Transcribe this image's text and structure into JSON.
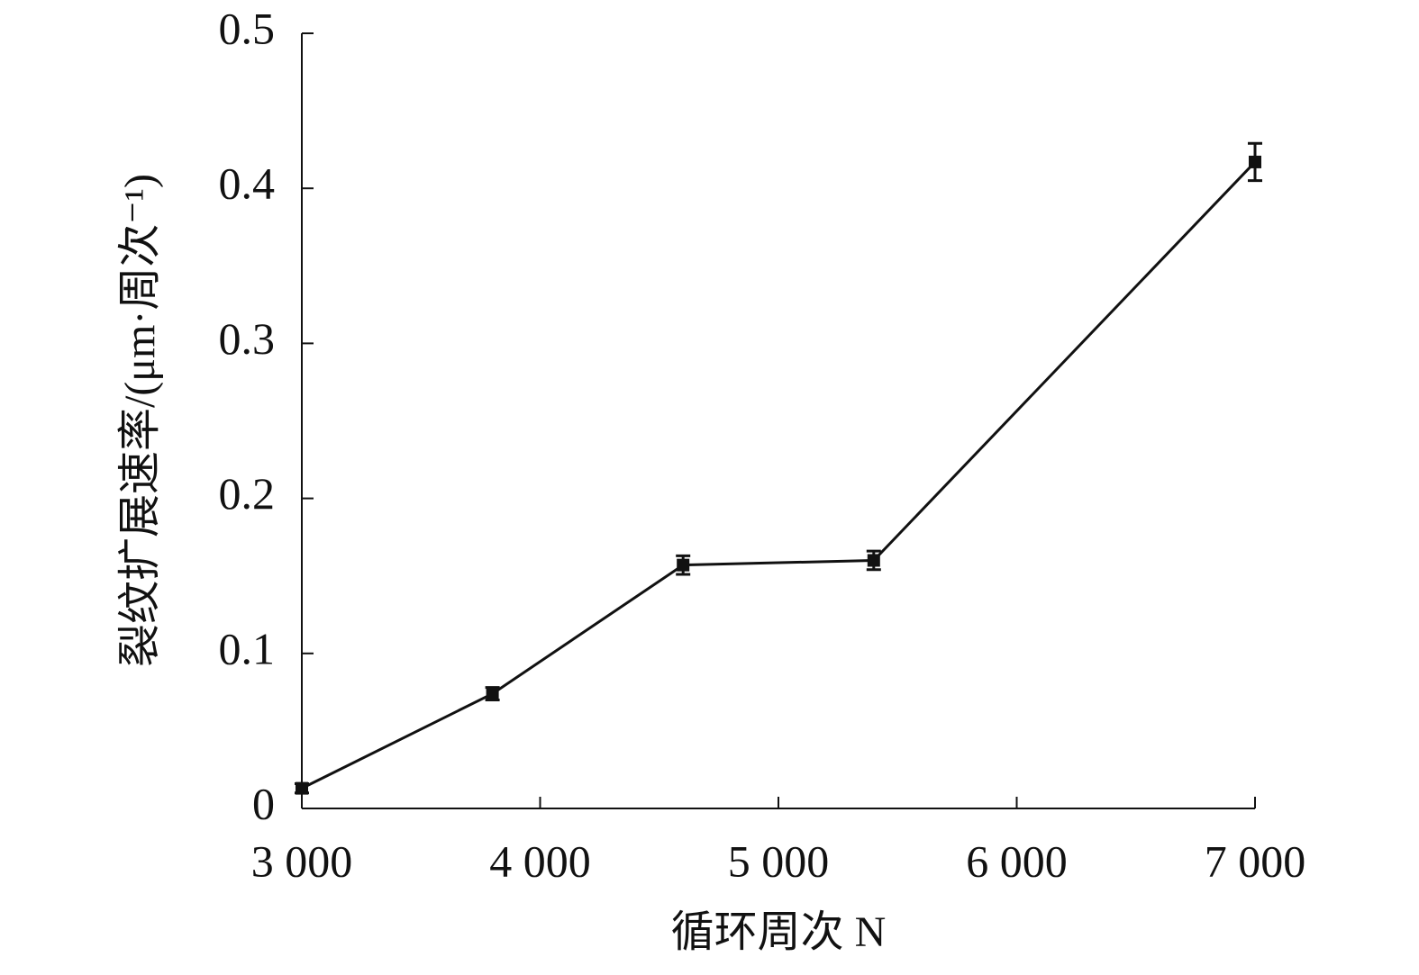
{
  "chart_data": {
    "type": "line",
    "x_label": "循环周次 N",
    "y_label": "裂纹扩展速率/(μm·周次⁻¹)",
    "x": [
      3000,
      3800,
      4600,
      5400,
      7000
    ],
    "series": [
      {
        "color": "#111111",
        "values": [
          0.013,
          0.074,
          0.157,
          0.16,
          0.417
        ],
        "errors": [
          0.003,
          0.004,
          0.006,
          0.006,
          0.012
        ]
      }
    ],
    "xlim": [
      3000,
      7000
    ],
    "xticks": [
      {
        "value": 3000,
        "label": "3 000"
      },
      {
        "value": 4000,
        "label": "4 000"
      },
      {
        "value": 5000,
        "label": "5 000"
      },
      {
        "value": 6000,
        "label": "6 000"
      },
      {
        "value": 7000,
        "label": "7 000"
      }
    ],
    "ylim": [
      0,
      0.5
    ],
    "yticks": [
      0,
      0.1,
      0.2,
      0.3,
      0.4,
      0.5
    ]
  }
}
